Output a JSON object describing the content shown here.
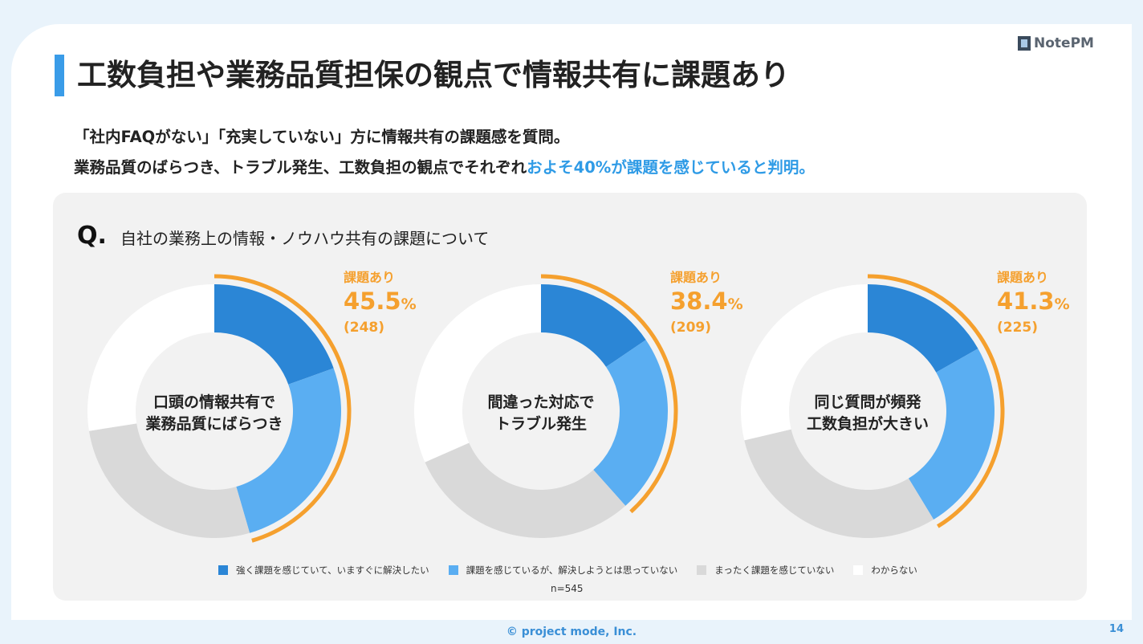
{
  "header": {
    "title": "工数負担や業務品質担保の観点で情報共有に課題あり",
    "logo_text": "NotePM"
  },
  "subtitle": {
    "line1": "「社内FAQがない」「充実していない」方に情報共有の課題感を質問。",
    "line2_plain": "業務品質のばらつき、トラブル発生、工数負担の観点でそれぞれ",
    "line2_highlight": "およそ40%が課題を感じていると判明。"
  },
  "question": {
    "mark": "Q.",
    "text": "自社の業務上の情報・ノウハウ共有の課題について"
  },
  "chart_data": [
    {
      "type": "pie",
      "center_label": [
        "口頭の情報共有で",
        "業務品質にばらつき"
      ],
      "annotation": {
        "label": "課題あり",
        "value": "45.5",
        "unit": "%",
        "count": "(248)"
      },
      "values": [
        19.5,
        26.0,
        27.0,
        27.5
      ]
    },
    {
      "type": "pie",
      "center_label": [
        "間違った対応で",
        "トラブル発生"
      ],
      "annotation": {
        "label": "課題あり",
        "value": "38.4",
        "unit": "%",
        "count": "(209)"
      },
      "values": [
        15.5,
        22.9,
        30.0,
        31.6
      ]
    },
    {
      "type": "pie",
      "center_label": [
        "同じ質問が頻発",
        "工数負担が大きい"
      ],
      "annotation": {
        "label": "課題あり",
        "value": "41.3",
        "unit": "%",
        "count": "(225)"
      },
      "values": [
        16.8,
        24.5,
        30.0,
        28.7
      ]
    }
  ],
  "legend": [
    {
      "label": "強く課題を感じていて、いますぐに解決したい",
      "color": "#2b86d6"
    },
    {
      "label": "課題を感じているが、解決しようとは思っていない",
      "color": "#5aaef2"
    },
    {
      "label": "まったく課題を感じていない",
      "color": "#d9d9d9"
    },
    {
      "label": "わからない",
      "color": "#ffffff"
    }
  ],
  "highlight_color": "#f5a02e",
  "sample": "n=545",
  "footer": {
    "copyright": "© project mode, Inc.",
    "page": "14"
  }
}
